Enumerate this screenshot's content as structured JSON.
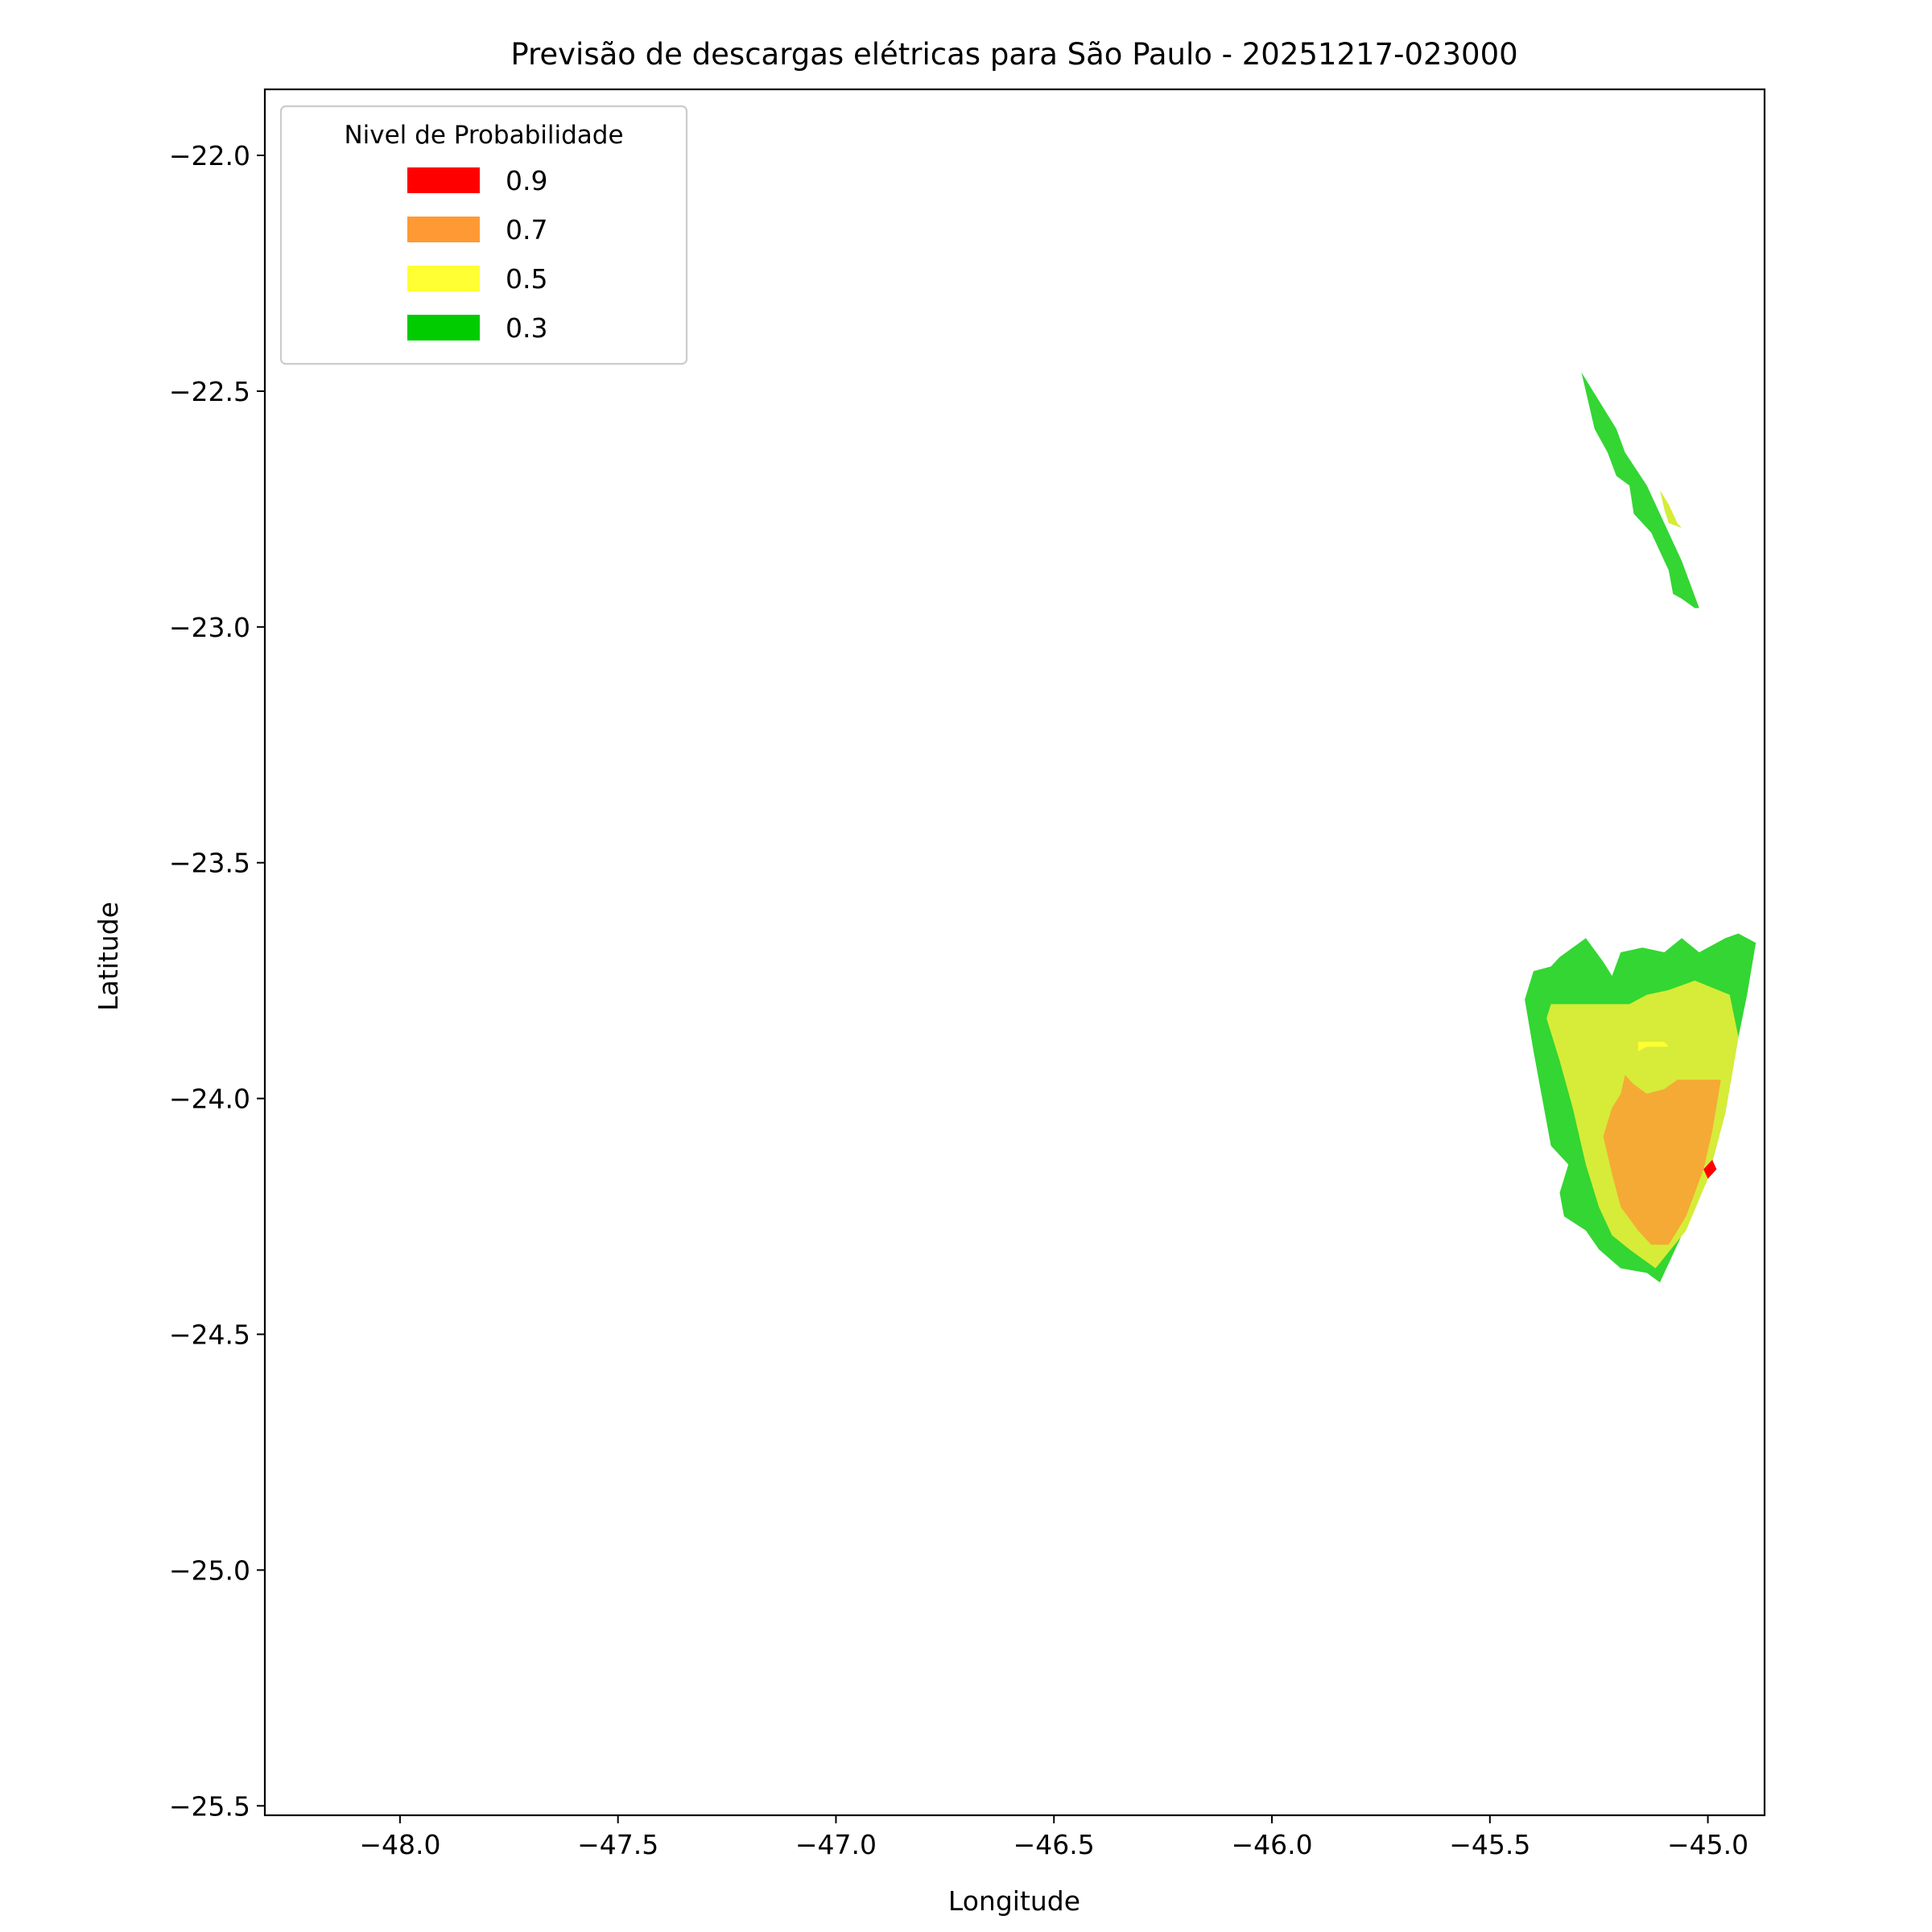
{
  "chart_data": {
    "type": "contour-map",
    "title": "Previsão de descargas elétricas para São Paulo - 20251217-023000",
    "xlabel": "Longitude",
    "ylabel": "Latitude",
    "xlim": [
      -48.31,
      -44.87
    ],
    "ylim": [
      -25.52,
      -21.86
    ],
    "xticks": [
      -48.0,
      -47.5,
      -47.0,
      -46.5,
      -46.0,
      -45.5,
      -45.0
    ],
    "xtick_labels": [
      "−48.0",
      "−47.5",
      "−47.0",
      "−46.5",
      "−46.0",
      "−45.5",
      "−45.0"
    ],
    "yticks": [
      -22.0,
      -22.5,
      -23.0,
      -23.5,
      -24.0,
      -24.5,
      -25.0,
      -25.5
    ],
    "ytick_labels": [
      "−22.0",
      "−22.5",
      "−23.0",
      "−23.5",
      "−24.0",
      "−24.5",
      "−25.0",
      "−25.5"
    ],
    "grid": false,
    "legend": {
      "title": "Nivel de Probabilidade",
      "position": "top-left",
      "entries": [
        {
          "label": "0.9",
          "color": "#ff0000"
        },
        {
          "label": "0.7",
          "color": "#ff9933"
        },
        {
          "label": "0.5",
          "color": "#ffff33"
        },
        {
          "label": "0.3",
          "color": "#00cc00"
        }
      ]
    },
    "regions": [
      {
        "level": 0.3,
        "color": "#33d633",
        "polygon": [
          [
            -45.29,
            -22.46
          ],
          [
            -45.21,
            -22.58
          ],
          [
            -45.19,
            -22.63
          ],
          [
            -45.14,
            -22.7
          ],
          [
            -45.1,
            -22.78
          ],
          [
            -45.06,
            -22.86
          ],
          [
            -45.02,
            -22.96
          ],
          [
            -45.03,
            -22.96
          ],
          [
            -45.06,
            -22.94
          ],
          [
            -45.08,
            -22.93
          ],
          [
            -45.09,
            -22.88
          ],
          [
            -45.11,
            -22.84
          ],
          [
            -45.13,
            -22.8
          ],
          [
            -45.17,
            -22.76
          ],
          [
            -45.18,
            -22.7
          ],
          [
            -45.21,
            -22.68
          ],
          [
            -45.23,
            -22.63
          ],
          [
            -45.26,
            -22.58
          ]
        ]
      },
      {
        "level": 0.5,
        "color": "#d6ec38",
        "polygon": [
          [
            -45.11,
            -22.71
          ],
          [
            -45.09,
            -22.74
          ],
          [
            -45.07,
            -22.78
          ],
          [
            -45.06,
            -22.79
          ],
          [
            -45.09,
            -22.78
          ],
          [
            -45.1,
            -22.75
          ]
        ]
      },
      {
        "level": 0.3,
        "color": "#33d633",
        "polygon": [
          [
            -45.42,
            -23.79
          ],
          [
            -45.4,
            -23.73
          ],
          [
            -45.36,
            -23.72
          ],
          [
            -45.34,
            -23.7
          ],
          [
            -45.28,
            -23.66
          ],
          [
            -45.24,
            -23.71
          ],
          [
            -45.22,
            -23.74
          ],
          [
            -45.2,
            -23.69
          ],
          [
            -45.15,
            -23.68
          ],
          [
            -45.1,
            -23.69
          ],
          [
            -45.06,
            -23.66
          ],
          [
            -45.02,
            -23.69
          ],
          [
            -44.96,
            -23.66
          ],
          [
            -44.93,
            -23.65
          ],
          [
            -44.89,
            -23.67
          ],
          [
            -44.91,
            -23.78
          ],
          [
            -44.93,
            -23.87
          ],
          [
            -44.96,
            -24.03
          ],
          [
            -45.0,
            -24.17
          ],
          [
            -45.07,
            -24.31
          ],
          [
            -45.11,
            -24.39
          ],
          [
            -45.14,
            -24.37
          ],
          [
            -45.2,
            -24.36
          ],
          [
            -45.25,
            -24.32
          ],
          [
            -45.28,
            -24.28
          ],
          [
            -45.33,
            -24.25
          ],
          [
            -45.34,
            -24.2
          ],
          [
            -45.32,
            -24.14
          ],
          [
            -45.36,
            -24.1
          ],
          [
            -45.38,
            -24.0
          ],
          [
            -45.4,
            -23.9
          ]
        ]
      },
      {
        "level": 0.5,
        "color": "#d6ec38",
        "polygon": [
          [
            -45.37,
            -23.83
          ],
          [
            -45.36,
            -23.8
          ],
          [
            -45.18,
            -23.8
          ],
          [
            -45.14,
            -23.78
          ],
          [
            -45.09,
            -23.77
          ],
          [
            -45.03,
            -23.75
          ],
          [
            -44.95,
            -23.78
          ],
          [
            -44.93,
            -23.87
          ],
          [
            -44.96,
            -24.03
          ],
          [
            -45.0,
            -24.17
          ],
          [
            -45.05,
            -24.28
          ],
          [
            -45.12,
            -24.36
          ],
          [
            -45.18,
            -24.32
          ],
          [
            -45.22,
            -24.29
          ],
          [
            -45.25,
            -24.23
          ],
          [
            -45.28,
            -24.14
          ],
          [
            -45.31,
            -24.02
          ],
          [
            -45.34,
            -23.92
          ]
        ]
      },
      {
        "level": 0.5,
        "color": "#ffff33",
        "polygon": [
          [
            -45.16,
            -23.88
          ],
          [
            -45.1,
            -23.88
          ],
          [
            -45.09,
            -23.89
          ],
          [
            -45.14,
            -23.89
          ],
          [
            -45.16,
            -23.9
          ]
        ]
      },
      {
        "level": 0.7,
        "color": "#f5aa36",
        "polygon": [
          [
            -45.24,
            -24.08
          ],
          [
            -45.22,
            -24.02
          ],
          [
            -45.2,
            -23.99
          ],
          [
            -45.19,
            -23.95
          ],
          [
            -45.17,
            -23.97
          ],
          [
            -45.14,
            -23.99
          ],
          [
            -45.1,
            -23.98
          ],
          [
            -45.07,
            -23.96
          ],
          [
            -44.97,
            -23.96
          ],
          [
            -44.99,
            -24.07
          ],
          [
            -45.01,
            -24.15
          ],
          [
            -45.05,
            -24.25
          ],
          [
            -45.09,
            -24.31
          ],
          [
            -45.13,
            -24.31
          ],
          [
            -45.16,
            -24.28
          ],
          [
            -45.2,
            -24.23
          ],
          [
            -45.22,
            -24.16
          ]
        ]
      },
      {
        "level": 0.9,
        "color": "#ff0000",
        "polygon": [
          [
            -44.99,
            -24.13
          ],
          [
            -45.01,
            -24.15
          ],
          [
            -45.0,
            -24.17
          ],
          [
            -44.98,
            -24.15
          ]
        ]
      }
    ]
  }
}
